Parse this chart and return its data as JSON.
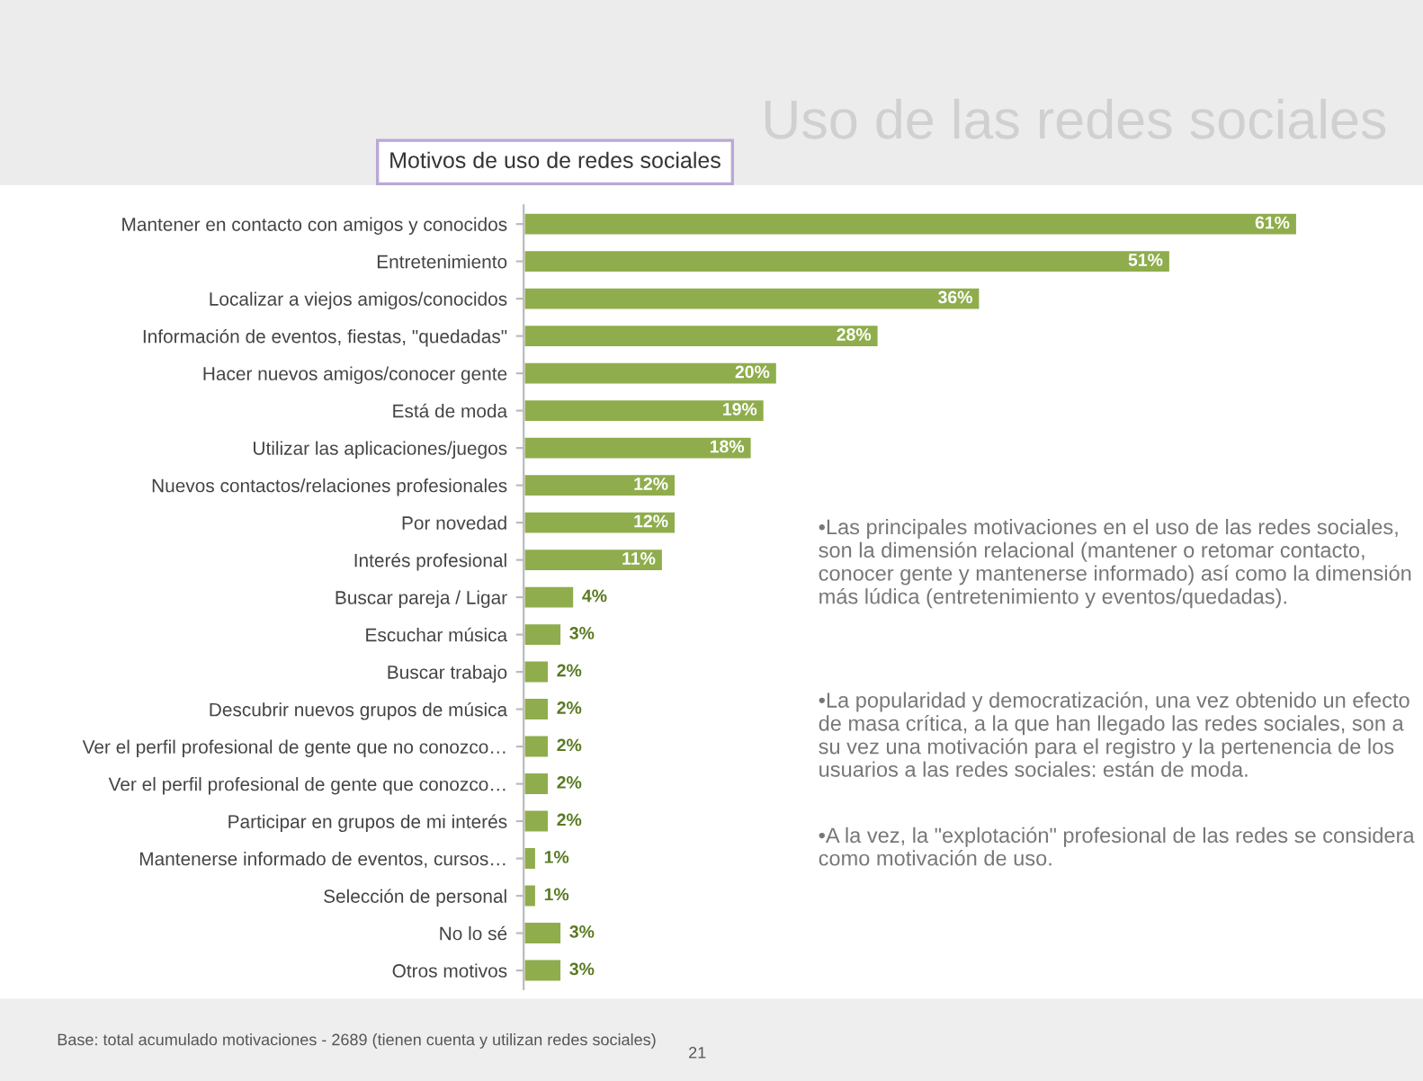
{
  "chart_data": {
    "type": "bar",
    "orientation": "horizontal",
    "title": "Uso de las redes sociales",
    "subtitle": "Motivos de uso de redes sociales",
    "categories": [
      "Mantener en contacto con amigos y conocidos",
      "Entretenimiento",
      "Localizar a viejos amigos/conocidos",
      "Información de eventos, fiestas, \"quedadas\"",
      "Hacer nuevos amigos/conocer gente",
      "Está de moda",
      "Utilizar las aplicaciones/juegos",
      "Nuevos contactos/relaciones profesionales",
      "Por novedad",
      "Interés profesional",
      "Buscar pareja / Ligar",
      "Escuchar música",
      "Buscar trabajo",
      "Descubrir nuevos grupos de música",
      "Ver el perfil profesional de gente que no conozco…",
      "Ver el perfil profesional de gente que conozco…",
      "Participar en grupos de mi interés",
      "Mantenerse informado de eventos, cursos…",
      "Selección de personal",
      "No lo sé",
      "Otros motivos"
    ],
    "series": [
      {
        "color": "#8fad4c",
        "values": [
          61,
          51,
          36,
          28,
          20,
          19,
          18,
          12,
          12,
          11,
          4,
          3,
          2,
          2,
          2,
          2,
          2,
          1,
          1,
          3,
          3
        ],
        "value_labels": [
          "61%",
          "51%",
          "36%",
          "28%",
          "20%",
          "19%",
          "18%",
          "12%",
          "12%",
          "11%",
          "4%",
          "3%",
          "2%",
          "2%",
          "2%",
          "2%",
          "2%",
          "1%",
          "1%",
          "3%",
          "3%"
        ]
      }
    ],
    "annotations": [
      "•Las principales motivaciones en el uso de las redes sociales, son la dimensión relacional (mantener o retomar contacto, conocer gente y mantenerse informado) así como la dimensión más lúdica (entretenimiento y eventos/quedadas).",
      "•La popularidad y democratización, una vez obtenido un efecto de masa crítica, a la que han llegado las redes sociales, son a su vez una motivación para el registro y la pertenencia de los usuarios a las redes sociales: están de moda.",
      "•A la vez, la \"explotación\" profesional de las redes se considera como motivación de uso.",
      "Base: total acumulado motivaciones - 2689 (tienen cuenta y utilizan redes sociales)",
      "21"
    ]
  }
}
